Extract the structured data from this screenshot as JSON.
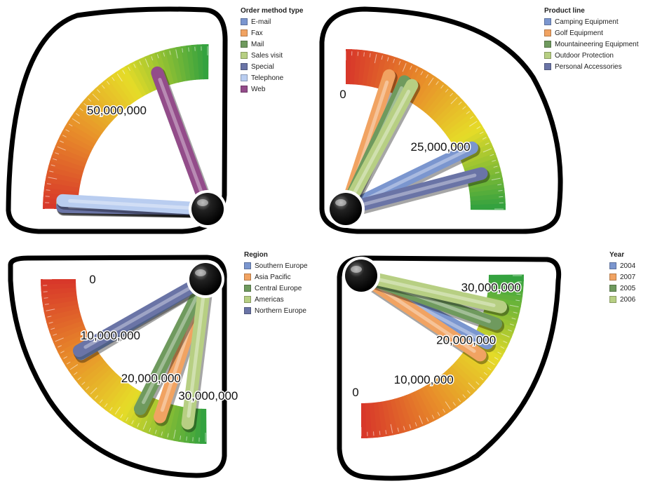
{
  "chart_data": [
    {
      "type": "gauge",
      "legend_title": "Order method type",
      "legend_position": "top-right",
      "scale_labels": [
        "50,000,000"
      ],
      "scale_values": [
        50000000
      ],
      "range": [
        0,
        80000000
      ],
      "series": [
        {
          "name": "E-mail",
          "value": 1500000,
          "color": "#7b96cf"
        },
        {
          "name": "Fax",
          "value": 1000000,
          "color": "#f1a362"
        },
        {
          "name": "Mail",
          "value": 1200000,
          "color": "#6f9a5e"
        },
        {
          "name": "Sales visit",
          "value": 2200000,
          "color": "#b7cf83"
        },
        {
          "name": "Special",
          "value": 800000,
          "color": "#6a74a6"
        },
        {
          "name": "Telephone",
          "value": 3000000,
          "color": "#b9cdf0"
        },
        {
          "name": "Web",
          "value": 62000000,
          "color": "#934c8a"
        }
      ]
    },
    {
      "type": "gauge",
      "legend_title": "Product line",
      "legend_position": "top-right",
      "scale_labels": [
        "0",
        "25,000,000"
      ],
      "scale_values": [
        0,
        25000000
      ],
      "range": [
        0,
        40000000
      ],
      "series": [
        {
          "name": "Camping Equipment",
          "value": 28500000,
          "color": "#7b96cf"
        },
        {
          "name": "Golf Equipment",
          "value": 8000000,
          "color": "#f1a362"
        },
        {
          "name": "Mountaineering Equipment",
          "value": 11000000,
          "color": "#6f9a5e"
        },
        {
          "name": "Outdoor Protection",
          "value": 12500000,
          "color": "#b7cf83"
        },
        {
          "name": "Personal Accessories",
          "value": 33500000,
          "color": "#6a74a6"
        }
      ]
    },
    {
      "type": "gauge",
      "legend_title": "Region",
      "legend_position": "top-right",
      "scale_labels": [
        "0",
        "10,000,000",
        "20,000,000",
        "30,000,000"
      ],
      "scale_values": [
        0,
        10000000,
        20000000,
        30000000
      ],
      "range": [
        0,
        32000000
      ],
      "series": [
        {
          "name": "Southern Europe",
          "value": 11000000,
          "color": "#7b96cf"
        },
        {
          "name": "Asia Pacific",
          "value": 25500000,
          "color": "#f1a362"
        },
        {
          "name": "Central Europe",
          "value": 22500000,
          "color": "#6f9a5e"
        },
        {
          "name": "Americas",
          "value": 29500000,
          "color": "#b7cf83"
        },
        {
          "name": "Northern Europe",
          "value": 10500000,
          "color": "#6a74a6"
        }
      ]
    },
    {
      "type": "gauge",
      "legend_title": "Year",
      "legend_position": "top-right",
      "scale_labels": [
        "0",
        "10,000,000",
        "20,000,000",
        "30,000,000"
      ],
      "scale_values": [
        0,
        10000000,
        20000000,
        30000000
      ],
      "range": [
        0,
        32000000
      ],
      "series": [
        {
          "name": "2004",
          "value": 22000000,
          "color": "#7b96cf"
        },
        {
          "name": "2007",
          "value": 20000000,
          "color": "#f1a362"
        },
        {
          "name": "2005",
          "value": 25000000,
          "color": "#6f9a5e"
        },
        {
          "name": "2006",
          "value": 27500000,
          "color": "#b7cf83"
        }
      ]
    }
  ]
}
